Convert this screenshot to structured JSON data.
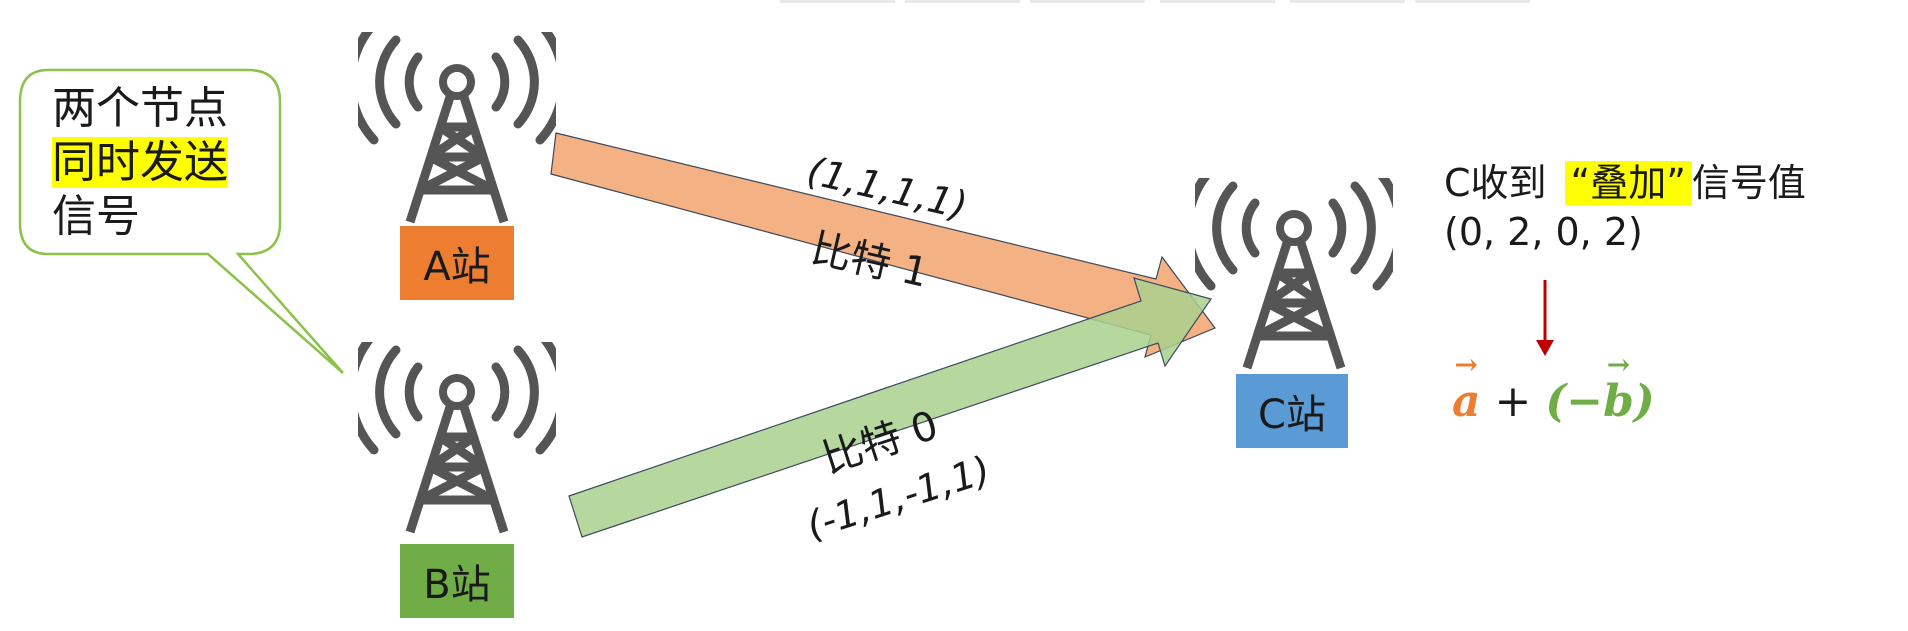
{
  "callout": {
    "line1": "两个节点",
    "line2": "同时发送",
    "line3": "信号"
  },
  "stations": {
    "a": {
      "label": "A站",
      "color": "#ed7d31"
    },
    "b": {
      "label": "B站",
      "color": "#70ad47"
    },
    "c": {
      "label": "C站",
      "color": "#5b9bd5"
    }
  },
  "arrows": {
    "a_to_c": {
      "signal": "(1,1,1,1)",
      "bit": "比特 1",
      "color": "#f4b183"
    },
    "b_to_c": {
      "signal": "(-1,1,-1,1)",
      "bit": "比特 0",
      "color": "#a9d18e"
    }
  },
  "receive": {
    "prefix": "C收到",
    "highlight": "“叠加”",
    "suffix": "信号值",
    "value": "(0, 2, 0, 2)",
    "arrow_color": "#c00000"
  },
  "formula": {
    "a": "a",
    "plus": " + ",
    "open": "(",
    "minus": "−",
    "b": "b",
    "close": ")"
  }
}
